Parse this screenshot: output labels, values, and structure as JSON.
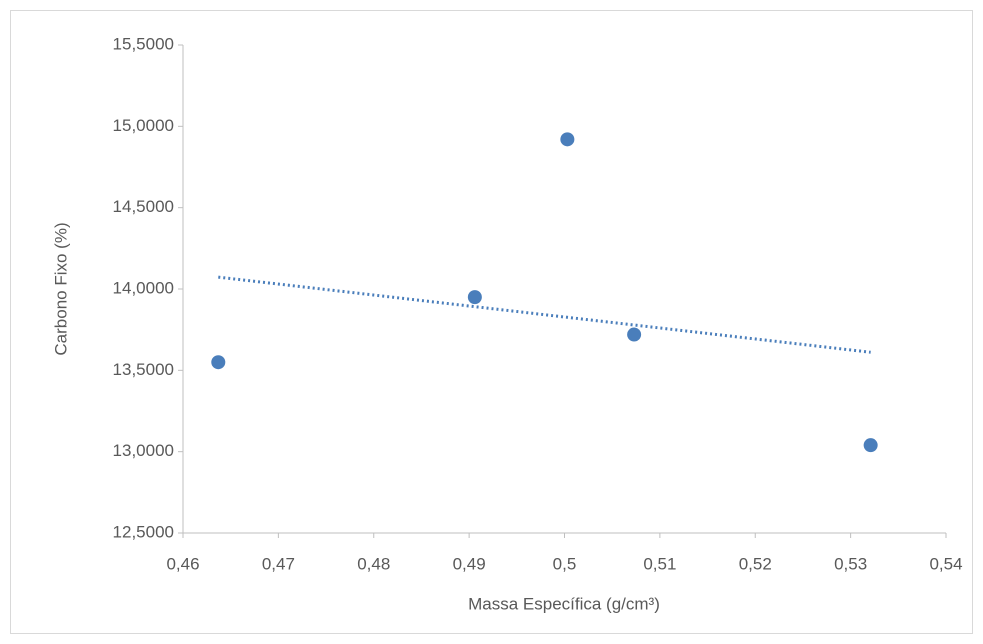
{
  "chart_data": {
    "type": "scatter",
    "x_label": "Massa Específica (g/cm³)",
    "y_label": "Carbono Fixo (%)",
    "x": [
      0.4637,
      0.4906,
      0.5003,
      0.5073,
      0.5321
    ],
    "values": [
      13.55,
      13.95,
      14.92,
      13.72,
      13.04
    ],
    "color": "#4a7ebb",
    "trendline": "linear",
    "xlim": [
      0.46,
      0.54
    ],
    "ylim": [
      12.5,
      15.5
    ],
    "xticks": [
      {
        "value": 0.46,
        "label": "0,46"
      },
      {
        "value": 0.47,
        "label": "0,47"
      },
      {
        "value": 0.48,
        "label": "0,48"
      },
      {
        "value": 0.49,
        "label": "0,49"
      },
      {
        "value": 0.5,
        "label": "0,5"
      },
      {
        "value": 0.51,
        "label": "0,51"
      },
      {
        "value": 0.52,
        "label": "0,52"
      },
      {
        "value": 0.53,
        "label": "0,53"
      },
      {
        "value": 0.54,
        "label": "0,54"
      }
    ],
    "yticks": [
      {
        "value": 12.5,
        "label": "12,5000"
      },
      {
        "value": 13,
        "label": "13,0000"
      },
      {
        "value": 13.5,
        "label": "13,5000"
      },
      {
        "value": 14,
        "label": "14,0000"
      },
      {
        "value": 14.5,
        "label": "14,5000"
      },
      {
        "value": 15,
        "label": "15,0000"
      },
      {
        "value": 15.5,
        "label": "15,5000"
      }
    ]
  }
}
